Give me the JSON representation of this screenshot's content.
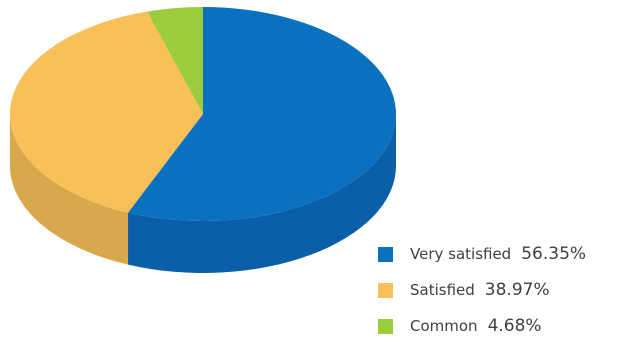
{
  "chart_data": {
    "type": "pie",
    "title": "",
    "style": "3d",
    "legend_position": "bottom-right",
    "labels": [
      "Very satisfied",
      "Satisfied",
      "Common"
    ],
    "values": [
      56.35,
      38.97,
      4.68
    ],
    "value_labels": [
      "56.35%",
      "38.97%",
      "4.68%"
    ],
    "colors": [
      "#0a70c0",
      "#f9c059",
      "#9acc3c"
    ],
    "side_colors": [
      "#0b5fa8",
      "#d8a84c",
      "#88b235"
    ]
  },
  "legend": {
    "items": [
      {
        "label": "Very satisfied",
        "value": "56.35%",
        "color": "#0a70c0"
      },
      {
        "label": "Satisfied",
        "value": "38.97%",
        "color": "#f9c059"
      },
      {
        "label": "Common",
        "value": "4.68%",
        "color": "#9acc3c"
      }
    ]
  }
}
